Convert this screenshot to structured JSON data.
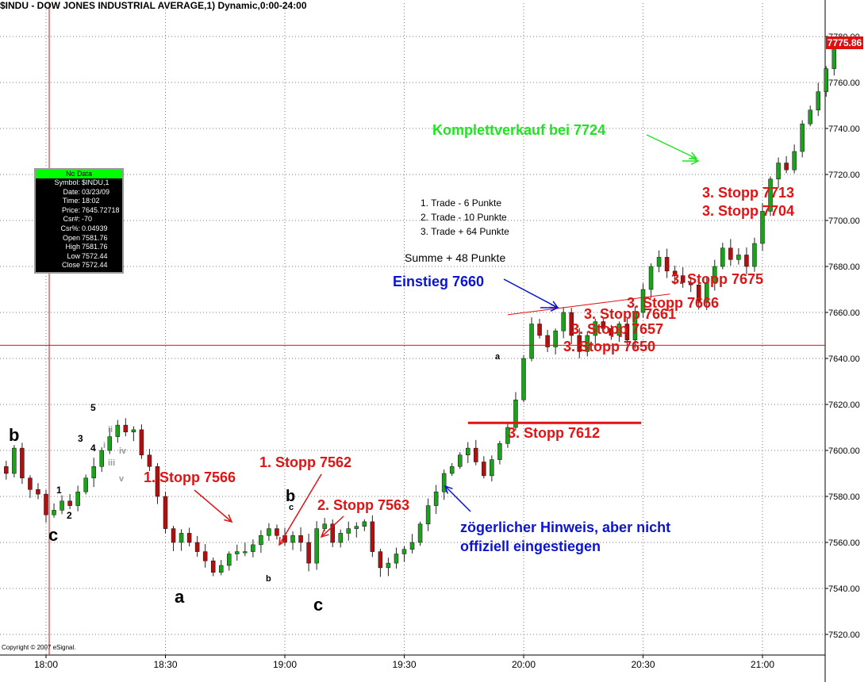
{
  "header": {
    "title": "$INDU - DOW JONES INDUSTRIAL AVERAGE,1) Dynamic,0:00-24:00"
  },
  "copyright": "Copyright © 2007 eSignal.",
  "last_price": "7775.86",
  "data_window": {
    "title": "No Data",
    "rows": [
      {
        "k": "Symbol:",
        "v": "$INDU,1"
      },
      {
        "k": "Date:",
        "v": "03/23/09"
      },
      {
        "k": "Time:",
        "v": "18:02"
      },
      {
        "k": "Price:",
        "v": "7645.72718"
      },
      {
        "k": "Csr#:",
        "v": "-70"
      },
      {
        "k": "Csr%:",
        "v": "0.04939"
      },
      {
        "k": "Open",
        "v": "7581.76"
      },
      {
        "k": "High",
        "v": "7581.76"
      },
      {
        "k": "Low",
        "v": "7572.44"
      },
      {
        "k": "Close",
        "v": "7572.44"
      }
    ]
  },
  "colors": {
    "up": "#1aa31a",
    "down": "#b01010",
    "crosshair": "#e01010",
    "grid": "#7a7a7a",
    "red_text": "#e01414",
    "blue_text": "#0a14d2",
    "green_text": "#1ee61e"
  },
  "chart_data": {
    "type": "candlestick",
    "symbol": "$INDU",
    "interval": "1 minute",
    "y_range": [
      7510,
      7790
    ],
    "y_ticks": [
      "7520.00",
      "7540.00",
      "7560.00",
      "7580.00",
      "7600.00",
      "7620.00",
      "7640.00",
      "7660.00",
      "7680.00",
      "7700.00",
      "7720.00",
      "7740.00",
      "7760.00",
      "7780.00"
    ],
    "x_ticks": [
      "18:00",
      "18:30",
      "19:00",
      "19:30",
      "20:00",
      "20:30",
      "21:00"
    ],
    "crosshair": {
      "time": "18:02",
      "price": 7645.73
    },
    "price_points": [
      {
        "t": "17:50",
        "p": 7590
      },
      {
        "t": "17:52",
        "p": 7601
      },
      {
        "t": "17:54",
        "p": 7588
      },
      {
        "t": "17:56",
        "p": 7583
      },
      {
        "t": "17:58",
        "p": 7581
      },
      {
        "t": "18:00",
        "p": 7572
      },
      {
        "t": "18:02",
        "p": 7574
      },
      {
        "t": "18:04",
        "p": 7578
      },
      {
        "t": "18:06",
        "p": 7576
      },
      {
        "t": "18:08",
        "p": 7582
      },
      {
        "t": "18:10",
        "p": 7588
      },
      {
        "t": "18:12",
        "p": 7593
      },
      {
        "t": "18:14",
        "p": 7600
      },
      {
        "t": "18:16",
        "p": 7606
      },
      {
        "t": "18:18",
        "p": 7611
      },
      {
        "t": "18:20",
        "p": 7608
      },
      {
        "t": "18:22",
        "p": 7609
      },
      {
        "t": "18:24",
        "p": 7598
      },
      {
        "t": "18:26",
        "p": 7593
      },
      {
        "t": "18:28",
        "p": 7580
      },
      {
        "t": "18:30",
        "p": 7566
      },
      {
        "t": "18:32",
        "p": 7560
      },
      {
        "t": "18:34",
        "p": 7564
      },
      {
        "t": "18:36",
        "p": 7560
      },
      {
        "t": "18:38",
        "p": 7556
      },
      {
        "t": "18:40",
        "p": 7552
      },
      {
        "t": "18:42",
        "p": 7547
      },
      {
        "t": "18:44",
        "p": 7550
      },
      {
        "t": "18:46",
        "p": 7555
      },
      {
        "t": "18:48",
        "p": 7556
      },
      {
        "t": "18:50",
        "p": 7556
      },
      {
        "t": "18:52",
        "p": 7559
      },
      {
        "t": "18:54",
        "p": 7563
      },
      {
        "t": "18:56",
        "p": 7566
      },
      {
        "t": "18:58",
        "p": 7563
      },
      {
        "t": "19:00",
        "p": 7560
      },
      {
        "t": "19:02",
        "p": 7563
      },
      {
        "t": "19:04",
        "p": 7560
      },
      {
        "t": "19:06",
        "p": 7551
      },
      {
        "t": "19:08",
        "p": 7566
      },
      {
        "t": "19:10",
        "p": 7568
      },
      {
        "t": "19:12",
        "p": 7560
      },
      {
        "t": "19:14",
        "p": 7564
      },
      {
        "t": "19:16",
        "p": 7566
      },
      {
        "t": "19:18",
        "p": 7567
      },
      {
        "t": "19:20",
        "p": 7569
      },
      {
        "t": "19:22",
        "p": 7556
      },
      {
        "t": "19:24",
        "p": 7549
      },
      {
        "t": "19:26",
        "p": 7551
      },
      {
        "t": "19:28",
        "p": 7555
      },
      {
        "t": "19:30",
        "p": 7557
      },
      {
        "t": "19:32",
        "p": 7560
      },
      {
        "t": "19:34",
        "p": 7568
      },
      {
        "t": "19:36",
        "p": 7576
      },
      {
        "t": "19:38",
        "p": 7582
      },
      {
        "t": "19:40",
        "p": 7590
      },
      {
        "t": "19:42",
        "p": 7593
      },
      {
        "t": "19:44",
        "p": 7598
      },
      {
        "t": "19:46",
        "p": 7601
      },
      {
        "t": "19:48",
        "p": 7595
      },
      {
        "t": "19:50",
        "p": 7589
      },
      {
        "t": "19:52",
        "p": 7596
      },
      {
        "t": "19:54",
        "p": 7603
      },
      {
        "t": "19:56",
        "p": 7610
      },
      {
        "t": "19:58",
        "p": 7622
      },
      {
        "t": "20:00",
        "p": 7640
      },
      {
        "t": "20:02",
        "p": 7655
      },
      {
        "t": "20:04",
        "p": 7650
      },
      {
        "t": "20:06",
        "p": 7645
      },
      {
        "t": "20:08",
        "p": 7652
      },
      {
        "t": "20:10",
        "p": 7660
      },
      {
        "t": "20:12",
        "p": 7650
      },
      {
        "t": "20:14",
        "p": 7643
      },
      {
        "t": "20:16",
        "p": 7650
      },
      {
        "t": "20:18",
        "p": 7656
      },
      {
        "t": "20:20",
        "p": 7653
      },
      {
        "t": "20:22",
        "p": 7650
      },
      {
        "t": "20:24",
        "p": 7655
      },
      {
        "t": "20:26",
        "p": 7648
      },
      {
        "t": "20:28",
        "p": 7660
      },
      {
        "t": "20:30",
        "p": 7670
      },
      {
        "t": "20:32",
        "p": 7680
      },
      {
        "t": "20:34",
        "p": 7684
      },
      {
        "t": "20:36",
        "p": 7678
      },
      {
        "t": "20:38",
        "p": 7676
      },
      {
        "t": "20:40",
        "p": 7673
      },
      {
        "t": "20:42",
        "p": 7672
      },
      {
        "t": "20:44",
        "p": 7665
      },
      {
        "t": "20:46",
        "p": 7673
      },
      {
        "t": "20:48",
        "p": 7680
      },
      {
        "t": "20:50",
        "p": 7688
      },
      {
        "t": "20:52",
        "p": 7683
      },
      {
        "t": "20:54",
        "p": 7685
      },
      {
        "t": "20:56",
        "p": 7680
      },
      {
        "t": "20:58",
        "p": 7690
      },
      {
        "t": "21:00",
        "p": 7704
      },
      {
        "t": "21:02",
        "p": 7718
      },
      {
        "t": "21:04",
        "p": 7725
      },
      {
        "t": "21:06",
        "p": 7722
      },
      {
        "t": "21:08",
        "p": 7730
      },
      {
        "t": "21:10",
        "p": 7742
      },
      {
        "t": "21:12",
        "p": 7748
      },
      {
        "t": "21:14",
        "p": 7756
      },
      {
        "t": "21:16",
        "p": 7766
      },
      {
        "t": "21:18",
        "p": 7778
      }
    ],
    "stop_line": {
      "price": 7612,
      "from": "19:46",
      "to": "20:14"
    },
    "trend_line": {
      "from": {
        "t": "19:56",
        "p": 7659
      },
      "to": {
        "t": "20:24",
        "p": 7668
      }
    },
    "annotations": [
      {
        "text": "1. Stopp 7566",
        "color": "red"
      },
      {
        "text": "1. Stopp 7562",
        "color": "red"
      },
      {
        "text": "2. Stopp 7563",
        "color": "red"
      },
      {
        "text": "3. Stopp 7612",
        "color": "red"
      },
      {
        "text": "3. Stopp 7650",
        "color": "red"
      },
      {
        "text": "3. Stopp 7657",
        "color": "red"
      },
      {
        "text": "3. Stopp 7661",
        "color": "red"
      },
      {
        "text": "3. Stopp 7666",
        "color": "red"
      },
      {
        "text": "3. Stopp 7675",
        "color": "red"
      },
      {
        "text": "3. Stopp 7713",
        "color": "red"
      },
      {
        "text": "3. Stopp 7704",
        "color": "red"
      },
      {
        "text": "Einstieg 7660",
        "color": "blue"
      },
      {
        "text": "zögerlicher Hinweis, aber nicht",
        "color": "blue"
      },
      {
        "text": "offiziell eingestiegen",
        "color": "blue"
      },
      {
        "text": "Komplettverkauf bei 7724",
        "color": "green"
      }
    ],
    "summary": [
      "1. Trade - 6 Punkte",
      "2. Trade - 10 Punkte",
      "3. Trade + 64 Punkte",
      "Summe + 48 Punkte"
    ],
    "wave_labels": [
      "b",
      "c",
      "a",
      "b",
      "c",
      "1",
      "2",
      "3",
      "4",
      "5",
      "a",
      "b",
      "c",
      "i",
      "ii",
      "iii",
      "iv",
      "v"
    ]
  }
}
